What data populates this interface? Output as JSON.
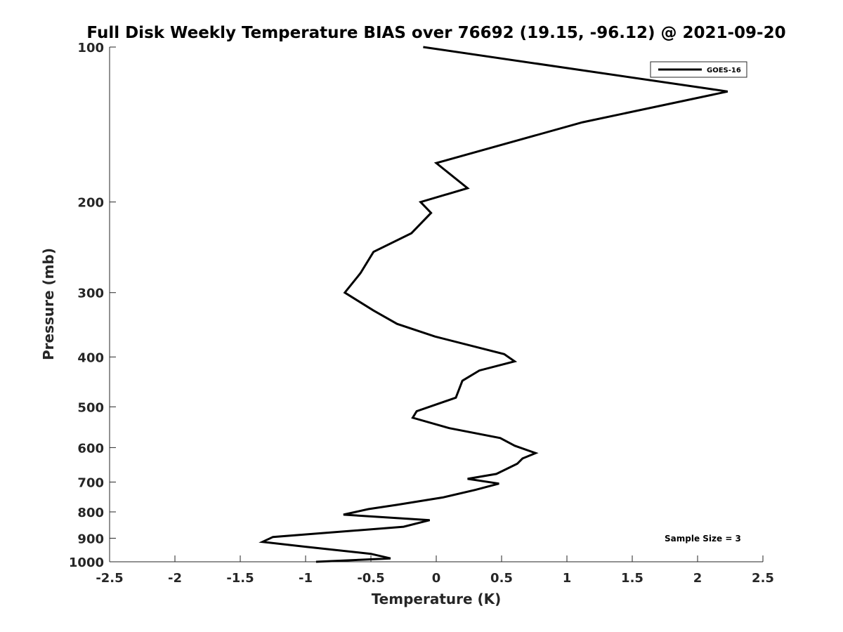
{
  "chart_data": {
    "type": "line",
    "title": "Full Disk Weekly Temperature BIAS over 76692 (19.15, -96.12) @ 2021-09-20",
    "xlabel": "Temperature (K)",
    "ylabel": "Pressure (mb)",
    "xlim": [
      -2.5,
      2.5
    ],
    "ylim": [
      100,
      1000
    ],
    "y_scale": "log",
    "y_reversed": true,
    "x_ticks": [
      "-2.5",
      "-2",
      "-1.5",
      "-1",
      "-0.5",
      "0",
      "0.5",
      "1",
      "1.5",
      "2",
      "2.5"
    ],
    "x_tick_values": [
      -2.5,
      -2,
      -1.5,
      -1,
      -0.5,
      0,
      0.5,
      1,
      1.5,
      2,
      2.5
    ],
    "y_ticks": [
      "100",
      "200",
      "300",
      "400",
      "500",
      "600",
      "700",
      "800",
      "900",
      "1000"
    ],
    "y_tick_values": [
      100,
      200,
      300,
      400,
      500,
      600,
      700,
      800,
      900,
      1000
    ],
    "grid": false,
    "legend_position": "top-right",
    "line_color": "#000000",
    "series": [
      {
        "name": "GOES-16",
        "x": [
          -0.1,
          2.23,
          1.12,
          0.0,
          0.24,
          -0.12,
          -0.04,
          -0.19,
          -0.48,
          -0.58,
          -0.7,
          -0.48,
          -0.3,
          -0.01,
          0.52,
          0.6,
          0.33,
          0.2,
          0.15,
          -0.15,
          -0.18,
          0.1,
          0.49,
          0.6,
          0.76,
          0.66,
          0.62,
          0.46,
          0.24,
          0.48,
          0.3,
          0.05,
          -0.3,
          -0.52,
          -0.71,
          -0.05,
          -0.25,
          -1.25,
          -1.33,
          -1.0,
          -0.5,
          -0.35,
          -0.92
        ],
        "y": [
          100,
          122,
          140,
          168,
          188,
          200,
          210,
          230,
          250,
          275,
          300,
          325,
          345,
          365,
          395,
          408,
          425,
          445,
          480,
          510,
          525,
          550,
          575,
          595,
          615,
          630,
          645,
          675,
          690,
          705,
          725,
          750,
          775,
          790,
          810,
          830,
          855,
          895,
          915,
          935,
          965,
          985,
          1000
        ]
      }
    ],
    "annotations": [
      "Sample Size = 3"
    ]
  }
}
